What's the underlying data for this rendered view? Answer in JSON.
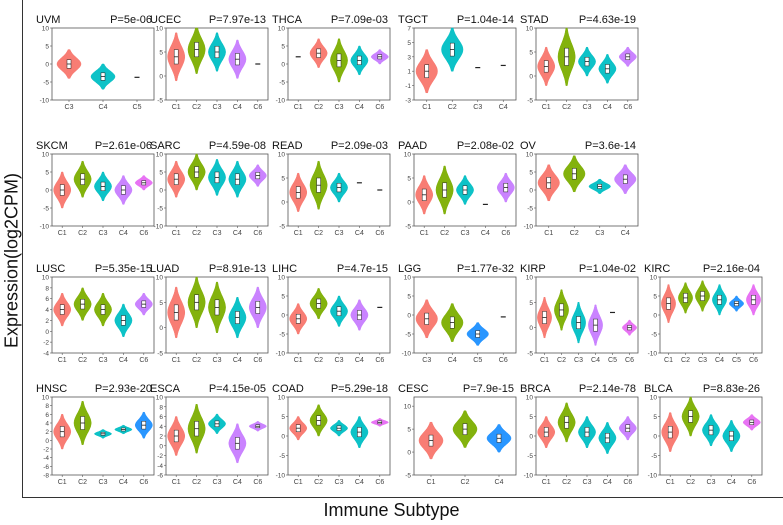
{
  "figure": {
    "ylabel": "Expression(log2CPM)",
    "xlabel": "Immune Subtype"
  },
  "palette": {
    "C1": "#F8766D",
    "C2": "#7CAE00",
    "C3": "#00BFC4",
    "C4": "#C77CFF",
    "C5": "#1E90FF",
    "C6": "#E76BF3",
    "frame": "#555555",
    "box": "#ffffff"
  },
  "chart_data": [
    {
      "type": "violin",
      "title": "UVM",
      "pvalue": "P=5e-06",
      "ylim": [
        -10,
        10
      ],
      "yticks": [
        -10,
        -5,
        0,
        5,
        10
      ],
      "groups": [
        {
          "name": "C3",
          "color": "C1",
          "median": 0,
          "spread": 4
        },
        {
          "name": "C4",
          "color": "C3",
          "median": -3.5,
          "spread": 3.5
        },
        {
          "name": "C5",
          "color": "C5",
          "median": -3.7,
          "spread": 0.1
        }
      ]
    },
    {
      "type": "violin",
      "title": "UCEC",
      "pvalue": "P=7.97e-13",
      "ylim": [
        -5,
        10
      ],
      "yticks": [
        -5,
        0,
        5,
        10
      ],
      "groups": [
        {
          "name": "C1",
          "color": "C1",
          "median": 4,
          "spread": 5
        },
        {
          "name": "C2",
          "color": "C2",
          "median": 5.5,
          "spread": 5
        },
        {
          "name": "C3",
          "color": "C3",
          "median": 5,
          "spread": 4
        },
        {
          "name": "C4",
          "color": "C4",
          "median": 3.5,
          "spread": 4
        },
        {
          "name": "C6",
          "color": "C6",
          "median": 2.5,
          "spread": 0.1
        }
      ]
    },
    {
      "type": "violin",
      "title": "THCA",
      "pvalue": "P=7.09e-03",
      "ylim": [
        -10,
        10
      ],
      "yticks": [
        -10,
        -5,
        0,
        5,
        10
      ],
      "groups": [
        {
          "name": "C1",
          "color": "C1",
          "median": 2,
          "spread": 0.1
        },
        {
          "name": "C2",
          "color": "C1",
          "median": 3,
          "spread": 4
        },
        {
          "name": "C3",
          "color": "C2",
          "median": 1,
          "spread": 6
        },
        {
          "name": "C4",
          "color": "C3",
          "median": 1,
          "spread": 4
        },
        {
          "name": "C6",
          "color": "C4",
          "median": 2,
          "spread": 2
        }
      ]
    },
    {
      "type": "violin",
      "title": "TGCT",
      "pvalue": "P=1.04e-14",
      "ylim": [
        -3,
        7
      ],
      "yticks": [
        -3,
        -1,
        1,
        3,
        5,
        7
      ],
      "groups": [
        {
          "name": "C1",
          "color": "C1",
          "median": 1,
          "spread": 3
        },
        {
          "name": "C2",
          "color": "C3",
          "median": 4,
          "spread": 3
        },
        {
          "name": "C3",
          "color": "C5",
          "median": 1.5,
          "spread": 0.2
        },
        {
          "name": "C4",
          "color": "C5",
          "median": 1.8,
          "spread": 0.1
        }
      ]
    },
    {
      "type": "violin",
      "title": "STAD",
      "pvalue": "P=4.63e-19",
      "ylim": [
        -5,
        10
      ],
      "yticks": [
        -5,
        0,
        5,
        10
      ],
      "groups": [
        {
          "name": "C1",
          "color": "C1",
          "median": 2,
          "spread": 4
        },
        {
          "name": "C2",
          "color": "C2",
          "median": 4,
          "spread": 6
        },
        {
          "name": "C3",
          "color": "C3",
          "median": 3,
          "spread": 3
        },
        {
          "name": "C4",
          "color": "C3",
          "median": 1.5,
          "spread": 3
        },
        {
          "name": "C6",
          "color": "C4",
          "median": 4,
          "spread": 2
        }
      ]
    },
    {
      "type": "violin",
      "title": "SKCM",
      "pvalue": "P=2.61e-06",
      "ylim": [
        -10,
        10
      ],
      "yticks": [
        -10,
        -5,
        0,
        5,
        10
      ],
      "groups": [
        {
          "name": "C1",
          "color": "C1",
          "median": 0,
          "spread": 5
        },
        {
          "name": "C2",
          "color": "C2",
          "median": 3,
          "spread": 5
        },
        {
          "name": "C3",
          "color": "C3",
          "median": 1,
          "spread": 4
        },
        {
          "name": "C4",
          "color": "C4",
          "median": 0,
          "spread": 4
        },
        {
          "name": "C6",
          "color": "C6",
          "median": 2,
          "spread": 2
        }
      ]
    },
    {
      "type": "violin",
      "title": "SARC",
      "pvalue": "P=4.59e-08",
      "ylim": [
        -10,
        10
      ],
      "yticks": [
        -10,
        -5,
        0,
        5,
        10
      ],
      "groups": [
        {
          "name": "C1",
          "color": "C1",
          "median": 3,
          "spread": 5
        },
        {
          "name": "C2",
          "color": "C2",
          "median": 5,
          "spread": 5
        },
        {
          "name": "C3",
          "color": "C3",
          "median": 3.5,
          "spread": 5
        },
        {
          "name": "C4",
          "color": "C3",
          "median": 3,
          "spread": 5
        },
        {
          "name": "C6",
          "color": "C4",
          "median": 4,
          "spread": 3
        }
      ]
    },
    {
      "type": "violin",
      "title": "READ",
      "pvalue": "P=2.09e-03",
      "ylim": [
        -5,
        10
      ],
      "yticks": [
        -5,
        0,
        5,
        10
      ],
      "groups": [
        {
          "name": "C1",
          "color": "C1",
          "median": 2,
          "spread": 4
        },
        {
          "name": "C2",
          "color": "C2",
          "median": 3.5,
          "spread": 5
        },
        {
          "name": "C3",
          "color": "C3",
          "median": 3,
          "spread": 3
        },
        {
          "name": "C4",
          "color": "C3",
          "median": 4,
          "spread": 0.1
        },
        {
          "name": "C6",
          "color": "C4",
          "median": 2.5,
          "spread": 0.1
        }
      ]
    },
    {
      "type": "violin",
      "title": "PAAD",
      "pvalue": "P=2.08e-02",
      "ylim": [
        -5,
        10
      ],
      "yticks": [
        -5,
        0,
        5,
        10
      ],
      "groups": [
        {
          "name": "C1",
          "color": "C1",
          "median": 1.5,
          "spread": 4
        },
        {
          "name": "C2",
          "color": "C2",
          "median": 2.5,
          "spread": 5
        },
        {
          "name": "C3",
          "color": "C3",
          "median": 2.5,
          "spread": 3
        },
        {
          "name": "C4",
          "color": "C3",
          "median": -0.5,
          "spread": 0.1
        },
        {
          "name": "C6",
          "color": "C4",
          "median": 3,
          "spread": 3
        }
      ]
    },
    {
      "type": "violin",
      "title": "OV",
      "pvalue": "P=3.6e-14",
      "ylim": [
        -10,
        10
      ],
      "yticks": [
        -10,
        -5,
        0,
        5,
        10
      ],
      "groups": [
        {
          "name": "C1",
          "color": "C1",
          "median": 2,
          "spread": 5
        },
        {
          "name": "C2",
          "color": "C2",
          "median": 4.5,
          "spread": 5
        },
        {
          "name": "C3",
          "color": "C3",
          "median": 1,
          "spread": 2
        },
        {
          "name": "C4",
          "color": "C4",
          "median": 3,
          "spread": 4
        }
      ]
    },
    {
      "type": "violin",
      "title": "LUSC",
      "pvalue": "P=5.35e-15",
      "ylim": [
        -4,
        10
      ],
      "yticks": [
        -4,
        -2,
        0,
        2,
        4,
        6,
        8,
        10
      ],
      "groups": [
        {
          "name": "C1",
          "color": "C1",
          "median": 4,
          "spread": 3
        },
        {
          "name": "C2",
          "color": "C2",
          "median": 5,
          "spread": 3
        },
        {
          "name": "C3",
          "color": "C2",
          "median": 4,
          "spread": 3
        },
        {
          "name": "C4",
          "color": "C3",
          "median": 2,
          "spread": 3
        },
        {
          "name": "C6",
          "color": "C4",
          "median": 5,
          "spread": 2
        }
      ]
    },
    {
      "type": "violin",
      "title": "LUAD",
      "pvalue": "P=8.91e-13",
      "ylim": [
        -5,
        10
      ],
      "yticks": [
        -5,
        0,
        5,
        10
      ],
      "groups": [
        {
          "name": "C1",
          "color": "C1",
          "median": 3,
          "spread": 5
        },
        {
          "name": "C2",
          "color": "C2",
          "median": 5,
          "spread": 5
        },
        {
          "name": "C3",
          "color": "C2",
          "median": 4,
          "spread": 5
        },
        {
          "name": "C4",
          "color": "C3",
          "median": 2,
          "spread": 4
        },
        {
          "name": "C6",
          "color": "C4",
          "median": 4,
          "spread": 4
        }
      ]
    },
    {
      "type": "violin",
      "title": "LIHC",
      "pvalue": "P=4.7e-15",
      "ylim": [
        -10,
        10
      ],
      "yticks": [
        -10,
        -5,
        0,
        5,
        10
      ],
      "groups": [
        {
          "name": "C1",
          "color": "C1",
          "median": -1,
          "spread": 4
        },
        {
          "name": "C2",
          "color": "C2",
          "median": 3,
          "spread": 4
        },
        {
          "name": "C3",
          "color": "C3",
          "median": 1,
          "spread": 4
        },
        {
          "name": "C4",
          "color": "C4",
          "median": 0,
          "spread": 4
        },
        {
          "name": "C6",
          "color": "C4",
          "median": 2,
          "spread": 0.1
        }
      ]
    },
    {
      "type": "violin",
      "title": "LGG",
      "pvalue": "P=1.77e-32",
      "ylim": [
        -10,
        10
      ],
      "yticks": [
        -10,
        -5,
        0,
        5,
        10
      ],
      "groups": [
        {
          "name": "C3",
          "color": "C1",
          "median": -1,
          "spread": 5
        },
        {
          "name": "C4",
          "color": "C2",
          "median": -2,
          "spread": 5
        },
        {
          "name": "C5",
          "color": "C5",
          "median": -5,
          "spread": 3
        },
        {
          "name": "C6",
          "color": "C5",
          "median": -0.5,
          "spread": 0.1
        }
      ]
    },
    {
      "type": "violin",
      "title": "KIRP",
      "pvalue": "P=1.04e-02",
      "ylim": [
        -5,
        10
      ],
      "yticks": [
        -5,
        0,
        5,
        10
      ],
      "groups": [
        {
          "name": "C1",
          "color": "C1",
          "median": 2,
          "spread": 4
        },
        {
          "name": "C2",
          "color": "C2",
          "median": 3.5,
          "spread": 4
        },
        {
          "name": "C3",
          "color": "C3",
          "median": 1,
          "spread": 4
        },
        {
          "name": "C4",
          "color": "C4",
          "median": 0.5,
          "spread": 4
        },
        {
          "name": "C5",
          "color": "C4",
          "median": 3,
          "spread": 0.1
        },
        {
          "name": "C6",
          "color": "C6",
          "median": 0,
          "spread": 1.5
        }
      ]
    },
    {
      "type": "violin",
      "title": "KIRC",
      "pvalue": "P=2.16e-04",
      "ylim": [
        -10,
        10
      ],
      "yticks": [
        -10,
        -5,
        0,
        5,
        10
      ],
      "groups": [
        {
          "name": "C1",
          "color": "C1",
          "median": 3,
          "spread": 5
        },
        {
          "name": "C2",
          "color": "C2",
          "median": 4.5,
          "spread": 4
        },
        {
          "name": "C3",
          "color": "C2",
          "median": 5,
          "spread": 4
        },
        {
          "name": "C4",
          "color": "C3",
          "median": 4,
          "spread": 4
        },
        {
          "name": "C5",
          "color": "C5",
          "median": 3,
          "spread": 2
        },
        {
          "name": "C6",
          "color": "C6",
          "median": 4,
          "spread": 4
        }
      ]
    },
    {
      "type": "violin",
      "title": "HNSC",
      "pvalue": "P=2.93e-20",
      "ylim": [
        -8,
        10
      ],
      "yticks": [
        -8,
        -6,
        -4,
        -2,
        0,
        2,
        4,
        6,
        8,
        10
      ],
      "groups": [
        {
          "name": "C1",
          "color": "C1",
          "median": 2,
          "spread": 4
        },
        {
          "name": "C2",
          "color": "C2",
          "median": 4,
          "spread": 5
        },
        {
          "name": "C3",
          "color": "C3",
          "median": 1.5,
          "spread": 1
        },
        {
          "name": "C4",
          "color": "C3",
          "median": 2.5,
          "spread": 1
        },
        {
          "name": "C6",
          "color": "C5",
          "median": 3.5,
          "spread": 3
        }
      ]
    },
    {
      "type": "violin",
      "title": "ESCA",
      "pvalue": "P=4.15e-05",
      "ylim": [
        -6,
        10
      ],
      "yticks": [
        -6,
        -4,
        -2,
        0,
        2,
        4,
        6,
        8,
        10
      ],
      "groups": [
        {
          "name": "C1",
          "color": "C1",
          "median": 2,
          "spread": 4
        },
        {
          "name": "C2",
          "color": "C2",
          "median": 3.5,
          "spread": 5
        },
        {
          "name": "C3",
          "color": "C3",
          "median": 4.5,
          "spread": 2
        },
        {
          "name": "C4",
          "color": "C4",
          "median": 0.5,
          "spread": 4
        },
        {
          "name": "C6",
          "color": "C4",
          "median": 4,
          "spread": 1
        }
      ]
    },
    {
      "type": "violin",
      "title": "COAD",
      "pvalue": "P=5.29e-18",
      "ylim": [
        -10,
        10
      ],
      "yticks": [
        -10,
        -5,
        0,
        5,
        10
      ],
      "groups": [
        {
          "name": "C1",
          "color": "C1",
          "median": 2,
          "spread": 3
        },
        {
          "name": "C2",
          "color": "C2",
          "median": 4,
          "spread": 4
        },
        {
          "name": "C3",
          "color": "C3",
          "median": 2,
          "spread": 2
        },
        {
          "name": "C4",
          "color": "C3",
          "median": 1,
          "spread": 4
        },
        {
          "name": "C6",
          "color": "C6",
          "median": 3.5,
          "spread": 1
        }
      ]
    },
    {
      "type": "violin",
      "title": "CESC",
      "pvalue": "P=7.9e-15",
      "ylim": [
        -5,
        12
      ],
      "yticks": [
        -5,
        0,
        5,
        10
      ],
      "groups": [
        {
          "name": "C1",
          "color": "C1",
          "median": 2.5,
          "spread": 4
        },
        {
          "name": "C2",
          "color": "C2",
          "median": 5,
          "spread": 4
        },
        {
          "name": "C4",
          "color": "C5",
          "median": 3,
          "spread": 3
        }
      ]
    },
    {
      "type": "violin",
      "title": "BRCA",
      "pvalue": "P=2.14e-78",
      "ylim": [
        -10,
        10
      ],
      "yticks": [
        -10,
        -5,
        0,
        5,
        10
      ],
      "groups": [
        {
          "name": "C1",
          "color": "C1",
          "median": 1,
          "spread": 4
        },
        {
          "name": "C2",
          "color": "C2",
          "median": 3.5,
          "spread": 5
        },
        {
          "name": "C3",
          "color": "C3",
          "median": 1,
          "spread": 4
        },
        {
          "name": "C4",
          "color": "C3",
          "median": -0.5,
          "spread": 4
        },
        {
          "name": "C6",
          "color": "C4",
          "median": 2,
          "spread": 3
        }
      ]
    },
    {
      "type": "violin",
      "title": "BLCA",
      "pvalue": "P=8.83e-26",
      "ylim": [
        -10,
        10
      ],
      "yticks": [
        -10,
        -5,
        0,
        5,
        10
      ],
      "groups": [
        {
          "name": "C1",
          "color": "C1",
          "median": 1,
          "spread": 5
        },
        {
          "name": "C2",
          "color": "C2",
          "median": 5,
          "spread": 5
        },
        {
          "name": "C3",
          "color": "C3",
          "median": 1.5,
          "spread": 4
        },
        {
          "name": "C4",
          "color": "C3",
          "median": 0,
          "spread": 4
        },
        {
          "name": "C6",
          "color": "C6",
          "median": 3.5,
          "spread": 2
        }
      ]
    }
  ]
}
